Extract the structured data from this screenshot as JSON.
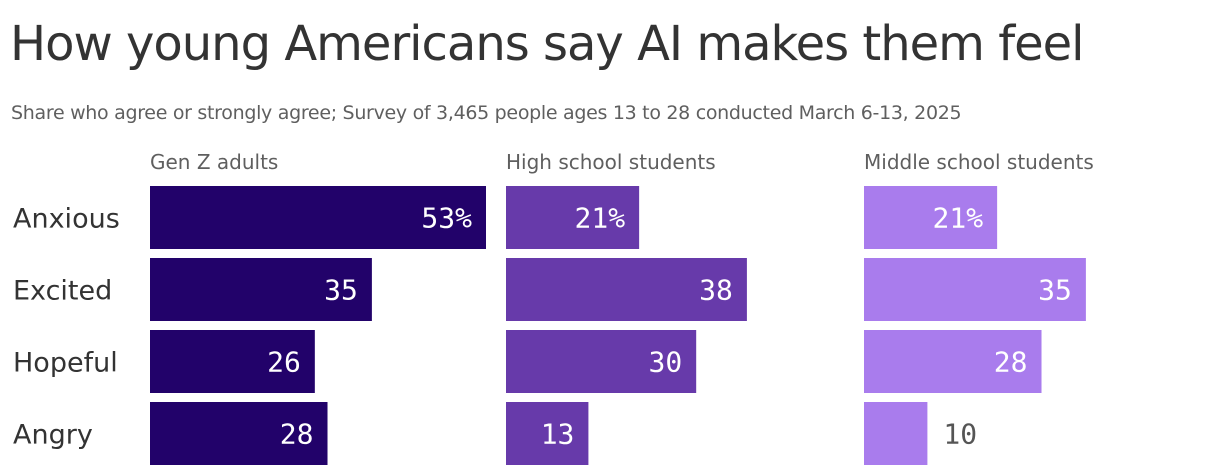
{
  "chart_data": {
    "type": "bar",
    "orientation": "horizontal",
    "title": "How young Americans say AI makes them feel",
    "subtitle": "Share who agree or strongly agree; Survey of 3,465 people ages 13 to 28 conducted March 6-13, 2025",
    "categories": [
      "Anxious",
      "Excited",
      "Hopeful",
      "Angry"
    ],
    "xlim": [
      0,
      53
    ],
    "series": [
      {
        "name": "Gen Z adults",
        "color": "#22026a",
        "values": [
          53,
          35,
          26,
          28
        ],
        "labels": [
          "53%",
          "35",
          "26",
          "28"
        ]
      },
      {
        "name": "High school students",
        "color": "#673aaa",
        "values": [
          21,
          38,
          30,
          13
        ],
        "labels": [
          "21%",
          "38",
          "30",
          "13"
        ]
      },
      {
        "name": "Middle school students",
        "color": "#a97ced",
        "values": [
          21,
          35,
          28,
          10
        ],
        "labels": [
          "21%",
          "35",
          "28",
          "10"
        ]
      }
    ],
    "grid": false,
    "legend": "none"
  }
}
